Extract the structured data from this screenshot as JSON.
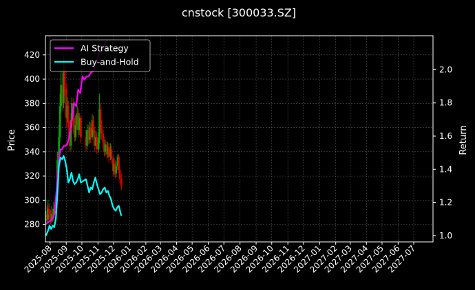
{
  "chart_data": {
    "type": "line",
    "title": "cnstock [300033.SZ]",
    "ylabel": "Price",
    "y2label": "Return",
    "grid": true,
    "legend_placement": "top-left",
    "x_ticks": [
      "2025-08",
      "2025-09",
      "2025-10",
      "2025-11",
      "2025-12",
      "2026-01",
      "2026-02",
      "2026-03",
      "2026-04",
      "2026-05",
      "2026-06",
      "2026-07",
      "2026-08",
      "2026-09",
      "2026-10",
      "2026-11",
      "2026-12",
      "2027-01",
      "2027-02",
      "2027-03",
      "2027-04",
      "2027-05",
      "2027-06",
      "2027-07"
    ],
    "xlim": [
      "2025-07-23",
      "2027-08-07"
    ],
    "y_ticks": [
      280,
      300,
      320,
      340,
      360,
      380,
      400,
      420
    ],
    "ylim": [
      265.6,
      435.8
    ],
    "y2_ticks": [
      1.0,
      1.2,
      1.4,
      1.6,
      1.8,
      2.0
    ],
    "y2lim": [
      0.962,
      2.205
    ],
    "colors": {
      "background": "#000000",
      "grid": "#555555",
      "axes": "#ffffff",
      "up_candle": "#00aa00",
      "down_candle": "#dd0000",
      "ai_strategy": "#ff00ff",
      "buy_and_hold": "#00ffff"
    },
    "candles": [
      {
        "x": "2025-07-24",
        "o": 283,
        "c": 288,
        "h": 291,
        "l": 280
      },
      {
        "x": "2025-07-26",
        "o": 288,
        "c": 284,
        "h": 296,
        "l": 281
      },
      {
        "x": "2025-07-28",
        "o": 284,
        "c": 293,
        "h": 300,
        "l": 281
      },
      {
        "x": "2025-07-30",
        "o": 293,
        "c": 288,
        "h": 297,
        "l": 284
      },
      {
        "x": "2025-08-02",
        "o": 288,
        "c": 283,
        "h": 292,
        "l": 280
      },
      {
        "x": "2025-08-04",
        "o": 283,
        "c": 289,
        "h": 295,
        "l": 281
      },
      {
        "x": "2025-08-06",
        "o": 289,
        "c": 286,
        "h": 293,
        "l": 282
      },
      {
        "x": "2025-08-08",
        "o": 286,
        "c": 293,
        "h": 299,
        "l": 283
      },
      {
        "x": "2025-08-11",
        "o": 293,
        "c": 296,
        "h": 300,
        "l": 289
      },
      {
        "x": "2025-08-13",
        "o": 296,
        "c": 305,
        "h": 312,
        "l": 293
      },
      {
        "x": "2025-08-15",
        "o": 305,
        "c": 333,
        "h": 340,
        "l": 303
      },
      {
        "x": "2025-08-18",
        "o": 333,
        "c": 352,
        "h": 362,
        "l": 330
      },
      {
        "x": "2025-08-20",
        "o": 352,
        "c": 378,
        "h": 388,
        "l": 348
      },
      {
        "x": "2025-08-22",
        "o": 378,
        "c": 395,
        "h": 410,
        "l": 372
      },
      {
        "x": "2025-08-25",
        "o": 395,
        "c": 380,
        "h": 405,
        "l": 374
      },
      {
        "x": "2025-08-27",
        "o": 380,
        "c": 412,
        "h": 420,
        "l": 376
      },
      {
        "x": "2025-08-29",
        "o": 412,
        "c": 392,
        "h": 416,
        "l": 386
      },
      {
        "x": "2025-09-01",
        "o": 392,
        "c": 368,
        "h": 396,
        "l": 360
      },
      {
        "x": "2025-09-03",
        "o": 368,
        "c": 378,
        "h": 385,
        "l": 364
      },
      {
        "x": "2025-09-05",
        "o": 378,
        "c": 360,
        "h": 382,
        "l": 352
      },
      {
        "x": "2025-09-08",
        "o": 360,
        "c": 345,
        "h": 366,
        "l": 340
      },
      {
        "x": "2025-09-10",
        "o": 345,
        "c": 366,
        "h": 372,
        "l": 341
      },
      {
        "x": "2025-09-12",
        "o": 366,
        "c": 380,
        "h": 385,
        "l": 360
      },
      {
        "x": "2025-09-15",
        "o": 380,
        "c": 362,
        "h": 384,
        "l": 355
      },
      {
        "x": "2025-09-17",
        "o": 362,
        "c": 352,
        "h": 368,
        "l": 348
      },
      {
        "x": "2025-09-19",
        "o": 352,
        "c": 362,
        "h": 370,
        "l": 349
      },
      {
        "x": "2025-09-22",
        "o": 362,
        "c": 372,
        "h": 378,
        "l": 358
      },
      {
        "x": "2025-09-24",
        "o": 372,
        "c": 358,
        "h": 376,
        "l": 352
      },
      {
        "x": "2025-09-26",
        "o": 358,
        "c": 368,
        "h": 372,
        "l": 354
      },
      {
        "x": "2025-09-29",
        "o": 368,
        "c": 352,
        "h": 370,
        "l": 347
      },
      {
        "x": "2025-10-09",
        "o": 352,
        "c": 345,
        "h": 358,
        "l": 340
      },
      {
        "x": "2025-10-11",
        "o": 345,
        "c": 358,
        "h": 363,
        "l": 342
      },
      {
        "x": "2025-10-14",
        "o": 358,
        "c": 350,
        "h": 362,
        "l": 346
      },
      {
        "x": "2025-10-16",
        "o": 350,
        "c": 360,
        "h": 365,
        "l": 347
      },
      {
        "x": "2025-10-18",
        "o": 360,
        "c": 352,
        "h": 364,
        "l": 347
      },
      {
        "x": "2025-10-21",
        "o": 352,
        "c": 366,
        "h": 371,
        "l": 350
      },
      {
        "x": "2025-10-23",
        "o": 366,
        "c": 358,
        "h": 370,
        "l": 354
      },
      {
        "x": "2025-10-25",
        "o": 358,
        "c": 345,
        "h": 361,
        "l": 340
      },
      {
        "x": "2025-10-28",
        "o": 345,
        "c": 352,
        "h": 357,
        "l": 342
      },
      {
        "x": "2025-10-30",
        "o": 352,
        "c": 342,
        "h": 356,
        "l": 338
      },
      {
        "x": "2025-11-02",
        "o": 342,
        "c": 350,
        "h": 356,
        "l": 339
      },
      {
        "x": "2025-11-04",
        "o": 350,
        "c": 375,
        "h": 388,
        "l": 347
      },
      {
        "x": "2025-11-06",
        "o": 375,
        "c": 362,
        "h": 380,
        "l": 356
      },
      {
        "x": "2025-11-08",
        "o": 362,
        "c": 355,
        "h": 366,
        "l": 350
      },
      {
        "x": "2025-11-11",
        "o": 355,
        "c": 348,
        "h": 358,
        "l": 343
      },
      {
        "x": "2025-11-13",
        "o": 348,
        "c": 340,
        "h": 352,
        "l": 336
      },
      {
        "x": "2025-11-15",
        "o": 340,
        "c": 346,
        "h": 350,
        "l": 337
      },
      {
        "x": "2025-11-18",
        "o": 346,
        "c": 338,
        "h": 349,
        "l": 334
      },
      {
        "x": "2025-11-20",
        "o": 338,
        "c": 344,
        "h": 348,
        "l": 335
      },
      {
        "x": "2025-11-22",
        "o": 344,
        "c": 336,
        "h": 347,
        "l": 331
      },
      {
        "x": "2025-11-25",
        "o": 336,
        "c": 342,
        "h": 347,
        "l": 333
      },
      {
        "x": "2025-11-27",
        "o": 342,
        "c": 334,
        "h": 345,
        "l": 330
      },
      {
        "x": "2025-11-30",
        "o": 334,
        "c": 324,
        "h": 337,
        "l": 320
      },
      {
        "x": "2025-12-02",
        "o": 324,
        "c": 330,
        "h": 335,
        "l": 321
      },
      {
        "x": "2025-12-04",
        "o": 330,
        "c": 322,
        "h": 333,
        "l": 318
      },
      {
        "x": "2025-12-06",
        "o": 322,
        "c": 328,
        "h": 332,
        "l": 319
      },
      {
        "x": "2025-12-09",
        "o": 328,
        "c": 336,
        "h": 338,
        "l": 325
      },
      {
        "x": "2025-12-11",
        "o": 336,
        "c": 325,
        "h": 338,
        "l": 322
      },
      {
        "x": "2025-12-13",
        "o": 325,
        "c": 318,
        "h": 328,
        "l": 314
      },
      {
        "x": "2025-12-16",
        "o": 318,
        "c": 312,
        "h": 322,
        "l": 308
      }
    ],
    "series": [
      {
        "name": "AI Strategy",
        "color": "#ff00ff",
        "x": [
          "2025-07-24",
          "2025-08-01",
          "2025-08-05",
          "2025-08-09",
          "2025-08-12",
          "2025-08-15",
          "2025-08-18",
          "2025-08-21",
          "2025-08-24",
          "2025-08-27",
          "2025-08-30",
          "2025-09-03",
          "2025-09-07",
          "2025-09-10",
          "2025-09-13",
          "2025-09-16",
          "2025-09-20",
          "2025-09-24",
          "2025-09-28",
          "2025-10-02",
          "2025-10-06",
          "2025-10-10",
          "2025-10-14",
          "2025-10-18",
          "2025-10-22",
          "2025-10-26",
          "2025-10-30",
          "2025-11-03",
          "2025-11-07",
          "2025-11-11",
          "2025-11-15",
          "2025-11-20"
        ],
        "values": [
          1.07,
          1.09,
          1.1,
          1.13,
          1.22,
          1.34,
          1.46,
          1.52,
          1.52,
          1.54,
          1.54,
          1.55,
          1.6,
          1.66,
          1.72,
          1.8,
          1.78,
          1.88,
          1.86,
          1.96,
          1.94,
          1.96,
          1.96,
          1.98,
          1.99,
          2.01,
          2.05,
          2.1,
          2.12,
          2.14,
          2.16,
          2.18
        ]
      },
      {
        "name": "Buy-and-Hold",
        "color": "#00ffff",
        "x": [
          "2025-07-24",
          "2025-07-28",
          "2025-07-31",
          "2025-08-03",
          "2025-08-06",
          "2025-08-09",
          "2025-08-12",
          "2025-08-15",
          "2025-08-18",
          "2025-08-21",
          "2025-08-24",
          "2025-08-27",
          "2025-08-30",
          "2025-09-02",
          "2025-09-05",
          "2025-09-08",
          "2025-09-11",
          "2025-09-14",
          "2025-09-17",
          "2025-09-20",
          "2025-09-23",
          "2025-09-26",
          "2025-09-29",
          "2025-10-09",
          "2025-10-12",
          "2025-10-15",
          "2025-10-18",
          "2025-10-21",
          "2025-10-24",
          "2025-10-27",
          "2025-10-30",
          "2025-11-02",
          "2025-11-05",
          "2025-11-08",
          "2025-11-11",
          "2025-11-14",
          "2025-11-17",
          "2025-11-20",
          "2025-11-23",
          "2025-11-26",
          "2025-11-29",
          "2025-12-02",
          "2025-12-05",
          "2025-12-08",
          "2025-12-11",
          "2025-12-14",
          "2025-12-16"
        ],
        "values": [
          1.0,
          1.03,
          1.06,
          1.04,
          1.06,
          1.05,
          1.1,
          1.25,
          1.42,
          1.47,
          1.46,
          1.48,
          1.45,
          1.4,
          1.32,
          1.34,
          1.38,
          1.33,
          1.31,
          1.32,
          1.34,
          1.37,
          1.32,
          1.34,
          1.3,
          1.26,
          1.29,
          1.28,
          1.32,
          1.35,
          1.31,
          1.28,
          1.25,
          1.26,
          1.28,
          1.29,
          1.26,
          1.27,
          1.24,
          1.22,
          1.18,
          1.16,
          1.15,
          1.17,
          1.18,
          1.14,
          1.12
        ]
      }
    ]
  }
}
